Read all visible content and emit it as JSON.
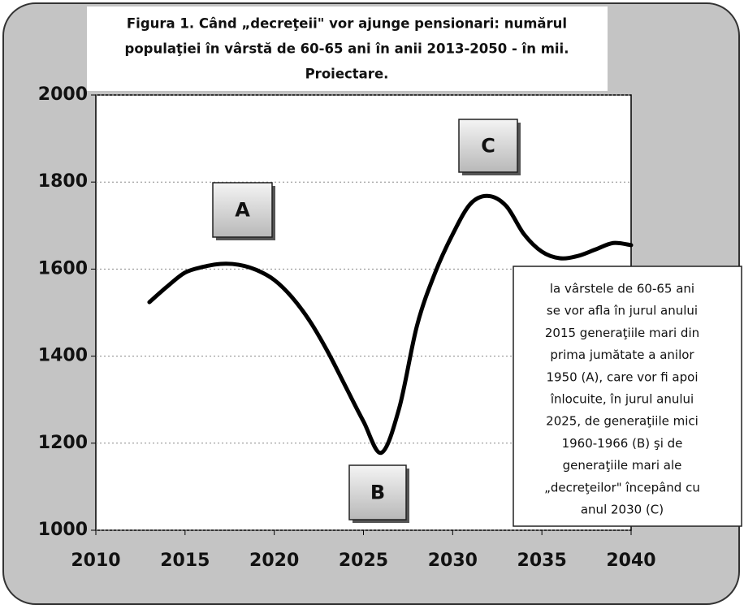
{
  "chart_data": {
    "type": "line",
    "title": [
      "Figura 1. Când „decreţeii\" vor ajunge pensionari:  numărul",
      "populaţiei în vârstă de 60-65 ani  în anii 2013-2050 - în mii.",
      "Proiectare."
    ],
    "x": [
      2013,
      2014,
      2015,
      2016,
      2017,
      2018,
      2019,
      2020,
      2021,
      2022,
      2023,
      2024,
      2025,
      2026,
      2027,
      2028,
      2029,
      2030,
      2031,
      2032,
      2033,
      2034,
      2035,
      2036,
      2037,
      2038,
      2039,
      2040
    ],
    "series": [
      {
        "color": "#000000",
        "values": [
          1524,
          1560,
          1592,
          1605,
          1612,
          1610,
          1598,
          1575,
          1535,
          1480,
          1410,
          1330,
          1250,
          1178,
          1280,
          1470,
          1590,
          1680,
          1750,
          1768,
          1745,
          1680,
          1640,
          1625,
          1630,
          1645,
          1660,
          1655
        ]
      }
    ],
    "xlim": [
      2010,
      2040
    ],
    "xticks": [
      2010,
      2015,
      2020,
      2025,
      2030,
      2035,
      2040
    ],
    "ylim": [
      1000,
      2000
    ],
    "yticks": [
      1000,
      1200,
      1400,
      1600,
      1800,
      2000
    ],
    "grid": true,
    "annotations": [
      "A",
      "B",
      "C"
    ],
    "note": [
      "la  vârstele de 60-65 ani",
      "se vor afla în jurul anului",
      "2015 generaţiile mari din",
      "prima jumătate a anilor",
      "1950  (A), care vor fi apoi",
      "înlocuite, în jurul anului",
      "2025, de generaţiile mici",
      "1960-1966 (B) şi de",
      "generaţiile  mari ale",
      "„decreţeilor\" începând cu",
      "anul 2030 (C)"
    ]
  }
}
